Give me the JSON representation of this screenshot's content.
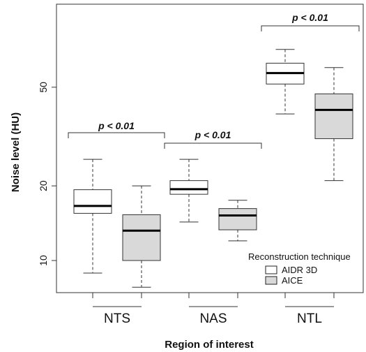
{
  "chart_data": {
    "type": "box",
    "title": "",
    "xlabel": "Region of interest",
    "ylabel": "Noise level (HU)",
    "y_scale": "log",
    "ylim": [
      6.5,
      100
    ],
    "yticks": [
      10,
      20,
      50
    ],
    "categories": [
      "NTS",
      "NAS",
      "NTL"
    ],
    "series": [
      {
        "name": "AIDR 3D",
        "color": "#ffffff",
        "boxes": [
          {
            "min": 8.9,
            "q1": 15.5,
            "median": 16.6,
            "q3": 19.3,
            "max": 25.6
          },
          {
            "min": 14.3,
            "q1": 18.5,
            "median": 19.4,
            "q3": 21.0,
            "max": 25.6
          },
          {
            "min": 39.0,
            "q1": 51.5,
            "median": 57.0,
            "q3": 62.5,
            "max": 71.0
          }
        ]
      },
      {
        "name": "AICE",
        "color": "#d9d9d9",
        "boxes": [
          {
            "min": 7.8,
            "q1": 10.0,
            "median": 13.2,
            "q3": 15.3,
            "max": 20.0
          },
          {
            "min": 12.0,
            "q1": 13.3,
            "median": 15.2,
            "q3": 16.2,
            "max": 17.5
          },
          {
            "min": 21.0,
            "q1": 31.0,
            "median": 40.5,
            "q3": 47.0,
            "max": 60.0
          }
        ]
      }
    ],
    "annotations": [
      {
        "text": "p < 0.01",
        "between": [
          "NTS",
          "NAS"
        ]
      },
      {
        "text": "p < 0.01",
        "between": [
          "NAS",
          "NTL"
        ]
      },
      {
        "text": "p < 0.01",
        "between": [
          "NTL",
          "NTL"
        ]
      }
    ],
    "legend": {
      "title": "Reconstruction technique",
      "position": "bottom-right"
    }
  }
}
